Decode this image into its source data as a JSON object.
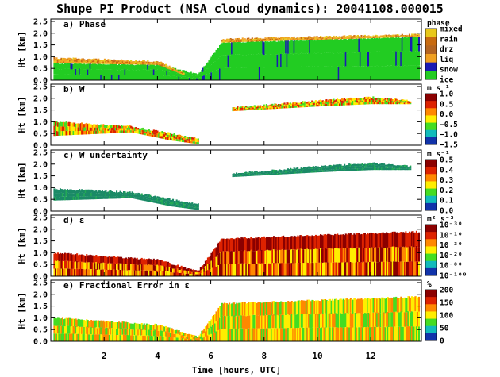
{
  "chart_data": {
    "title": "Shupe PI Product (NSA cloud dynamics): 20041108.000015",
    "xlabel": "Time [hours, UTC]",
    "xlim": [
      0,
      13.9
    ],
    "xticks": [
      "2",
      "4",
      "6",
      "8",
      "10",
      "12"
    ],
    "xtick_values": [
      2,
      4,
      6,
      8,
      10,
      12
    ],
    "panels": [
      {
        "type": "heatmap",
        "label": "a) Phase",
        "ylabel": "Ht [km]",
        "ylim": [
          0,
          2.6
        ],
        "yticks": [
          "0.0",
          "0.5",
          "1.0",
          "1.5",
          "2.0",
          "2.5"
        ],
        "ytick_values": [
          0.0,
          0.5,
          1.0,
          1.5,
          2.0,
          2.5
        ],
        "colorbar_title": "phase",
        "colorbar_labels": [
          "mixed",
          "rain",
          "drz",
          "liq",
          "snow",
          "ice"
        ],
        "colorbar_colors": [
          "#e8c81a",
          "#c86a10",
          "#b46420",
          "#f0a020",
          "#1a1ab4",
          "#22cc22"
        ],
        "cloud_layers": [
          {
            "x": [
              0.1,
              4.0,
              5.5,
              6.4,
              13.8
            ],
            "base": [
              0.0,
              0.0,
              0.0,
              0.0,
              0.0
            ],
            "top": [
              0.72,
              0.65,
              0.25,
              1.6,
              1.85
            ],
            "class": "ice"
          },
          {
            "x": [
              0.1,
              4.0,
              5.0
            ],
            "base": [
              0.72,
              0.65,
              0.2
            ],
            "top": [
              0.95,
              0.8,
              0.3
            ],
            "class": "liq"
          },
          {
            "x": [
              6.4,
              13.8
            ],
            "base": [
              1.6,
              1.85
            ],
            "top": [
              1.75,
              1.95
            ],
            "class": "liq"
          }
        ]
      },
      {
        "type": "heatmap",
        "label": "b) W",
        "ylabel": "Ht [km]",
        "ylim": [
          0,
          2.6
        ],
        "yticks": [
          "0.0",
          "0.5",
          "1.0",
          "1.5",
          "2.0",
          "2.5"
        ],
        "ytick_values": [
          0.0,
          0.5,
          1.0,
          1.5,
          2.0,
          2.5
        ],
        "colorbar_title": "m s⁻¹",
        "colorbar_labels": [
          "1.0",
          "0.5",
          "0.0",
          "−0.5",
          "−1.0",
          "−1.5"
        ],
        "colorbar_colors": [
          "#8b0000",
          "#dd2200",
          "#ff8800",
          "#ffee00",
          "#44dd22",
          "#11bbbb",
          "#1133aa"
        ],
        "cloud_layers": [
          {
            "x": [
              0.1,
              3.0,
              4.5,
              5.5
            ],
            "base": [
              0.4,
              0.55,
              0.2,
              0.05
            ],
            "top": [
              1.0,
              0.8,
              0.5,
              0.3
            ],
            "class": "w"
          },
          {
            "x": [
              6.8,
              10.0,
              12.0,
              13.5
            ],
            "base": [
              1.45,
              1.65,
              1.75,
              1.75
            ],
            "top": [
              1.6,
              1.9,
              2.05,
              1.9
            ],
            "class": "w"
          }
        ]
      },
      {
        "type": "heatmap",
        "label": "c) W uncertainty",
        "ylabel": "Ht [km]",
        "ylim": [
          0,
          2.6
        ],
        "yticks": [
          "0.0",
          "0.5",
          "1.0",
          "1.5",
          "2.0",
          "2.5"
        ],
        "ytick_values": [
          0.0,
          0.5,
          1.0,
          1.5,
          2.0,
          2.5
        ],
        "colorbar_title": "m s⁻¹",
        "colorbar_labels": [
          "0.5",
          "0.4",
          "0.3",
          "0.2",
          "0.1",
          "0.0"
        ],
        "colorbar_colors": [
          "#8b0000",
          "#dd2200",
          "#ff8800",
          "#ffee00",
          "#44dd22",
          "#11bbbb",
          "#1133aa"
        ],
        "cloud_layers": [
          {
            "x": [
              0.1,
              3.0,
              4.5,
              5.5
            ],
            "base": [
              0.45,
              0.55,
              0.2,
              0.05
            ],
            "top": [
              0.95,
              0.8,
              0.5,
              0.3
            ],
            "class": "wu"
          },
          {
            "x": [
              6.8,
              10.0,
              12.0,
              13.5
            ],
            "base": [
              1.45,
              1.65,
              1.75,
              1.75
            ],
            "top": [
              1.6,
              1.9,
              2.05,
              1.9
            ],
            "class": "wu"
          }
        ]
      },
      {
        "type": "heatmap",
        "label": "d) ε",
        "ylabel": "Ht [km]",
        "ylim": [
          0,
          2.6
        ],
        "yticks": [
          "0.0",
          "0.5",
          "1.0",
          "1.5",
          "2.0",
          "2.5"
        ],
        "ytick_values": [
          0.0,
          0.5,
          1.0,
          1.5,
          2.0,
          2.5
        ],
        "colorbar_title": "m² s⁻³",
        "colorbar_labels": [
          "10⁻³⁰",
          "10⁻¹⁰",
          "10⁻³⁰",
          "10⁻²⁰",
          "10⁻⁸⁰",
          "10⁻¹⁰⁰"
        ],
        "colorbar_colors": [
          "#8b0000",
          "#dd2200",
          "#ff8800",
          "#ffee00",
          "#44dd22",
          "#11bbbb",
          "#1133aa"
        ],
        "cloud_layers": [
          {
            "x": [
              0.1,
              4.0,
              5.5,
              6.4,
              13.8
            ],
            "base": [
              0.0,
              0.0,
              0.0,
              0.0,
              0.0
            ],
            "top": [
              1.0,
              0.7,
              0.2,
              1.6,
              1.9
            ],
            "class": "eps"
          }
        ]
      },
      {
        "type": "heatmap",
        "label": "e) Fractional Error in ε",
        "ylabel": "Ht [km]",
        "ylim": [
          0,
          2.6
        ],
        "yticks": [
          "0.0",
          "0.5",
          "1.0",
          "1.5",
          "2.0",
          "2.5"
        ],
        "ytick_values": [
          0.0,
          0.5,
          1.0,
          1.5,
          2.0,
          2.5
        ],
        "colorbar_title": "%",
        "colorbar_labels": [
          "200",
          "150",
          "100",
          "50",
          "0"
        ],
        "colorbar_colors": [
          "#8b0000",
          "#dd2200",
          "#ff8800",
          "#ffee00",
          "#44dd22",
          "#11bbbb",
          "#1133aa"
        ],
        "cloud_layers": [
          {
            "x": [
              0.1,
              4.0,
              5.5,
              6.4,
              13.8
            ],
            "base": [
              0.0,
              0.0,
              0.0,
              0.0,
              0.0
            ],
            "top": [
              1.0,
              0.7,
              0.2,
              1.6,
              1.9
            ],
            "class": "ferr"
          }
        ]
      }
    ]
  }
}
